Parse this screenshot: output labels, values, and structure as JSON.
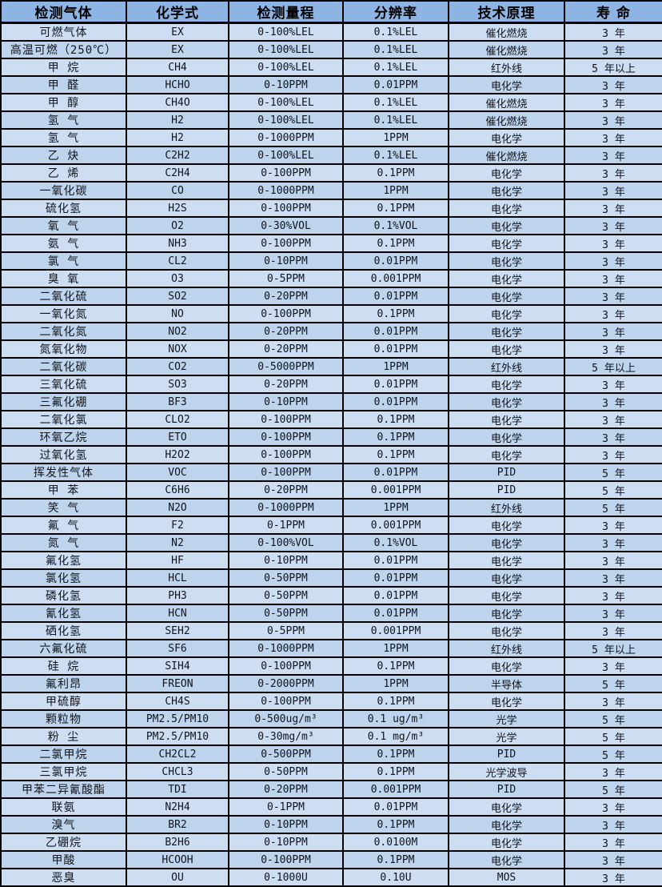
{
  "table": {
    "columns": [
      {
        "key": "gas",
        "label": "检测气体"
      },
      {
        "key": "formula",
        "label": "化学式"
      },
      {
        "key": "range",
        "label": "检测量程"
      },
      {
        "key": "resolution",
        "label": "分辨率"
      },
      {
        "key": "principle",
        "label": "技术原理"
      },
      {
        "key": "lifespan",
        "label": "寿 命"
      }
    ],
    "rows": [
      {
        "gas": "可燃气体",
        "formula": "EX",
        "range": "0-100%LEL",
        "resolution": "0.1%LEL",
        "principle": "催化燃烧",
        "lifespan": "3 年"
      },
      {
        "gas": "高温可燃（250℃）",
        "formula": "EX",
        "range": "0-100%LEL",
        "resolution": "0.1%LEL",
        "principle": "催化燃烧",
        "lifespan": "3 年"
      },
      {
        "gas": "甲 烷",
        "formula": "CH4",
        "range": "0-100%LEL",
        "resolution": "0.1%LEL",
        "principle": "红外线",
        "lifespan": "5 年以上"
      },
      {
        "gas": "甲 醛",
        "formula": "HCHO",
        "range": "0-10PPM",
        "resolution": "0.01PPM",
        "principle": "电化学",
        "lifespan": "3 年"
      },
      {
        "gas": "甲 醇",
        "formula": "CH4O",
        "range": "0-100%LEL",
        "resolution": "0.1%LEL",
        "principle": "催化燃烧",
        "lifespan": "3 年"
      },
      {
        "gas": "氢 气",
        "formula": "H2",
        "range": "0-100%LEL",
        "resolution": "0.1%LEL",
        "principle": "催化燃烧",
        "lifespan": "3 年"
      },
      {
        "gas": "氢 气",
        "formula": "H2",
        "range": "0-1000PPM",
        "resolution": "1PPM",
        "principle": "电化学",
        "lifespan": "3 年"
      },
      {
        "gas": "乙 炔",
        "formula": "C2H2",
        "range": "0-100%LEL",
        "resolution": "0.1%LEL",
        "principle": "催化燃烧",
        "lifespan": "3 年"
      },
      {
        "gas": "乙 烯",
        "formula": "C2H4",
        "range": "0-100PPM",
        "resolution": "0.1PPM",
        "principle": "电化学",
        "lifespan": "3 年"
      },
      {
        "gas": "一氧化碳",
        "formula": "CO",
        "range": "0-1000PPM",
        "resolution": "1PPM",
        "principle": "电化学",
        "lifespan": "3 年"
      },
      {
        "gas": "硫化氢",
        "formula": "H2S",
        "range": "0-100PPM",
        "resolution": "0.1PPM",
        "principle": "电化学",
        "lifespan": "3 年"
      },
      {
        "gas": "氧 气",
        "formula": "O2",
        "range": "0-30%VOL",
        "resolution": "0.1%VOL",
        "principle": "电化学",
        "lifespan": "3 年"
      },
      {
        "gas": "氨 气",
        "formula": "NH3",
        "range": "0-100PPM",
        "resolution": "0.1PPM",
        "principle": "电化学",
        "lifespan": "3 年"
      },
      {
        "gas": "氯 气",
        "formula": "CL2",
        "range": "0-10PPM",
        "resolution": "0.01PPM",
        "principle": "电化学",
        "lifespan": "3 年"
      },
      {
        "gas": "臭 氧",
        "formula": "O3",
        "range": "0-5PPM",
        "resolution": "0.001PPM",
        "principle": "电化学",
        "lifespan": "3 年"
      },
      {
        "gas": "二氧化硫",
        "formula": "SO2",
        "range": "0-20PPM",
        "resolution": "0.01PPM",
        "principle": "电化学",
        "lifespan": "3 年"
      },
      {
        "gas": "一氧化氮",
        "formula": "NO",
        "range": "0-100PPM",
        "resolution": "0.1PPM",
        "principle": "电化学",
        "lifespan": "3 年"
      },
      {
        "gas": "二氧化氮",
        "formula": "NO2",
        "range": "0-20PPM",
        "resolution": "0.01PPM",
        "principle": "电化学",
        "lifespan": "3 年"
      },
      {
        "gas": "氮氧化物",
        "formula": "NOX",
        "range": "0-20PPM",
        "resolution": "0.01PPM",
        "principle": "电化学",
        "lifespan": "3 年"
      },
      {
        "gas": "二氧化碳",
        "formula": "CO2",
        "range": "0-5000PPM",
        "resolution": "1PPM",
        "principle": "红外线",
        "lifespan": "5 年以上"
      },
      {
        "gas": "三氧化硫",
        "formula": "SO3",
        "range": "0-20PPM",
        "resolution": "0.01PPM",
        "principle": "电化学",
        "lifespan": "3 年"
      },
      {
        "gas": "三氟化硼",
        "formula": "BF3",
        "range": "0-10PPM",
        "resolution": "0.01PPM",
        "principle": "电化学",
        "lifespan": "3 年"
      },
      {
        "gas": "二氧化氯",
        "formula": "CLO2",
        "range": "0-100PPM",
        "resolution": "0.1PPM",
        "principle": "电化学",
        "lifespan": "3 年"
      },
      {
        "gas": "环氧乙烷",
        "formula": "ETO",
        "range": "0-100PPM",
        "resolution": "0.1PPM",
        "principle": "电化学",
        "lifespan": "3 年"
      },
      {
        "gas": "过氧化氢",
        "formula": "H2O2",
        "range": "0-100PPM",
        "resolution": "0.1PPM",
        "principle": "电化学",
        "lifespan": "3 年"
      },
      {
        "gas": "挥发性气体",
        "formula": "VOC",
        "range": "0-100PPM",
        "resolution": "0.01PPM",
        "principle": "PID",
        "lifespan": "5 年"
      },
      {
        "gas": "甲 苯",
        "formula": "C6H6",
        "range": "0-20PPM",
        "resolution": "0.001PPM",
        "principle": "PID",
        "lifespan": "5 年"
      },
      {
        "gas": "笑 气",
        "formula": "N2O",
        "range": "0-1000PPM",
        "resolution": "1PPM",
        "principle": "红外线",
        "lifespan": "5 年"
      },
      {
        "gas": "氟 气",
        "formula": "F2",
        "range": "0-1PPM",
        "resolution": "0.001PPM",
        "principle": "电化学",
        "lifespan": "3 年"
      },
      {
        "gas": "氮 气",
        "formula": "N2",
        "range": "0-100%VOL",
        "resolution": "0.1%VOL",
        "principle": "电化学",
        "lifespan": "3 年"
      },
      {
        "gas": "氟化氢",
        "formula": "HF",
        "range": "0-10PPM",
        "resolution": "0.01PPM",
        "principle": "电化学",
        "lifespan": "3 年"
      },
      {
        "gas": "氯化氢",
        "formula": "HCL",
        "range": "0-50PPM",
        "resolution": "0.01PPM",
        "principle": "电化学",
        "lifespan": "3 年"
      },
      {
        "gas": "磷化氢",
        "formula": "PH3",
        "range": "0-50PPM",
        "resolution": "0.01PPM",
        "principle": "电化学",
        "lifespan": "3 年"
      },
      {
        "gas": "氰化氢",
        "formula": "HCN",
        "range": "0-50PPM",
        "resolution": "0.01PPM",
        "principle": "电化学",
        "lifespan": "3 年"
      },
      {
        "gas": "硒化氢",
        "formula": "SEH2",
        "range": "0-5PPM",
        "resolution": "0.001PPM",
        "principle": "电化学",
        "lifespan": "3 年"
      },
      {
        "gas": "六氟化硫",
        "formula": "SF6",
        "range": "0-1000PPM",
        "resolution": "1PPM",
        "principle": "红外线",
        "lifespan": "5 年以上"
      },
      {
        "gas": "硅 烷",
        "formula": "SIH4",
        "range": "0-100PPM",
        "resolution": "0.1PPM",
        "principle": "电化学",
        "lifespan": "3 年"
      },
      {
        "gas": "氟利昂",
        "formula": "FREON",
        "range": "0-2000PPM",
        "resolution": "1PPM",
        "principle": "半导体",
        "lifespan": "5 年"
      },
      {
        "gas": "甲硫醇",
        "formula": "CH4S",
        "range": "0-100PPM",
        "resolution": "0.1PPM",
        "principle": "电化学",
        "lifespan": "3 年"
      },
      {
        "gas": "颗粒物",
        "formula": "PM2.5/PM10",
        "range": "0-500ug/m³",
        "resolution": "0.1 ug/m³",
        "principle": "光学",
        "lifespan": "5 年"
      },
      {
        "gas": "粉 尘",
        "formula": "PM2.5/PM10",
        "range": "0-30mg/m³",
        "resolution": "0.1 mg/m³",
        "principle": "光学",
        "lifespan": "5 年"
      },
      {
        "gas": "二氯甲烷",
        "formula": "CH2CL2",
        "range": "0-500PPM",
        "resolution": "0.1PPM",
        "principle": "PID",
        "lifespan": "5 年"
      },
      {
        "gas": "三氯甲烷",
        "formula": "CHCL3",
        "range": "0-50PPM",
        "resolution": "0.1PPM",
        "principle": "光学波导",
        "lifespan": "3 年"
      },
      {
        "gas": "甲苯二异氰酸酯",
        "formula": "TDI",
        "range": "0-20PPM",
        "resolution": "0.001PPM",
        "principle": "PID",
        "lifespan": "5 年"
      },
      {
        "gas": "联氨",
        "formula": "N2H4",
        "range": "0-1PPM",
        "resolution": "0.01PPM",
        "principle": "电化学",
        "lifespan": "3 年"
      },
      {
        "gas": "溴气",
        "formula": "BR2",
        "range": "0-10PPM",
        "resolution": "0.1PPM",
        "principle": "电化学",
        "lifespan": "3 年"
      },
      {
        "gas": "乙硼烷",
        "formula": "B2H6",
        "range": "0-10PPM",
        "resolution": "0.0100M",
        "principle": "电化学",
        "lifespan": "3 年"
      },
      {
        "gas": "甲酸",
        "formula": "HCOOH",
        "range": "0-100PPM",
        "resolution": "0.1PPM",
        "principle": "电化学",
        "lifespan": "3 年"
      },
      {
        "gas": "恶臭",
        "formula": "OU",
        "range": "0-1000U",
        "resolution": "0.10U",
        "principle": "MOS",
        "lifespan": "3 年"
      }
    ]
  }
}
